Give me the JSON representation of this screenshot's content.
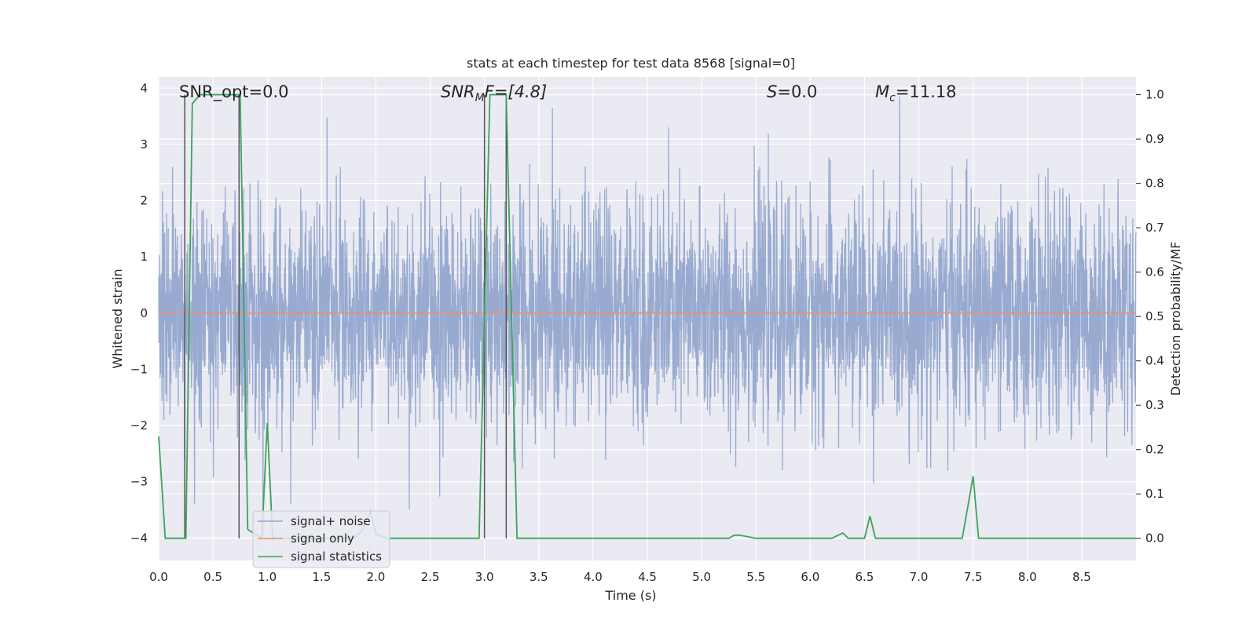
{
  "chart_data": {
    "type": "line",
    "title": "stats at each timestep for test data 8568 [signal=0]",
    "xlabel": "Time (s)",
    "ylabel": "Whitened strain",
    "y2label": "Detection probability/MF",
    "xlim": [
      0,
      9
    ],
    "ylim": [
      -4.4,
      4.2
    ],
    "y2lim": [
      -0.05,
      1.04
    ],
    "xticks": [
      "0.0",
      "0.5",
      "1.0",
      "1.5",
      "2.0",
      "2.5",
      "3.0",
      "3.5",
      "4.0",
      "4.5",
      "5.0",
      "5.5",
      "6.0",
      "6.5",
      "7.0",
      "7.5",
      "8.0",
      "8.5"
    ],
    "yticks": [
      "−4",
      "−3",
      "−2",
      "−1",
      "0",
      "1",
      "2",
      "3",
      "4"
    ],
    "y2ticks": [
      "0.0",
      "0.1",
      "0.2",
      "0.3",
      "0.4",
      "0.5",
      "0.6",
      "0.7",
      "0.8",
      "0.9",
      "1.0"
    ],
    "grid": true,
    "legend_position": "lower-left",
    "annotations": {
      "snr_opt": "SNR_opt=0.0",
      "snr_mf_main": "SNR",
      "snr_mf_sub": "M",
      "snr_mf_rest": "F=[4.8]",
      "s_main": "S",
      "s_rest": "=0.0",
      "mc_main": "M",
      "mc_sub": "c",
      "mc_rest": "=11.18"
    },
    "series": [
      {
        "name": "signal+ noise",
        "color": "#8fa3cc",
        "axis": "left",
        "description_sampling": "whitened strain noise, approx. Gaussian sd 1, 4096 Hz",
        "noise_sd": 1.0
      },
      {
        "name": "signal only",
        "color": "#e8926b",
        "axis": "left",
        "x": [
          0,
          9
        ],
        "y": [
          0,
          0
        ]
      },
      {
        "name": "signal statistics",
        "color": "#3da35a",
        "axis": "right",
        "x": [
          0.0,
          0.06,
          0.25,
          0.31,
          0.38,
          0.5,
          0.75,
          0.82,
          0.95,
          1.0,
          1.05,
          1.1,
          1.15,
          1.5,
          1.8,
          1.88,
          1.95,
          2.0,
          2.1,
          2.5,
          2.9,
          2.95,
          3.05,
          3.2,
          3.3,
          3.5,
          3.7,
          3.8,
          4.0,
          4.5,
          5.0,
          5.25,
          5.3,
          5.35,
          5.5,
          6.0,
          6.2,
          6.3,
          6.35,
          6.5,
          6.55,
          6.6,
          6.7,
          7.0,
          7.4,
          7.5,
          7.55,
          8.0,
          9.0
        ],
        "y": [
          0.23,
          0.0,
          0.0,
          0.98,
          1.0,
          1.0,
          1.0,
          0.02,
          0.0,
          0.26,
          0.0,
          0.0,
          0.0,
          0.0,
          0.0,
          0.02,
          0.06,
          0.01,
          0.0,
          0.0,
          0.0,
          0.0,
          1.0,
          1.0,
          0.0,
          0.0,
          0.0,
          0.0,
          0.0,
          0.0,
          0.0,
          0.0,
          0.007,
          0.007,
          0.0,
          0.0,
          0.0,
          0.012,
          0.0,
          0.0,
          0.05,
          0.0,
          0.0,
          0.0,
          0.0,
          0.14,
          0.0,
          0.0,
          0.0
        ]
      }
    ],
    "vertical_markers": [
      0.24,
      0.74,
      3.0,
      3.2
    ]
  },
  "colors": {
    "plot_bg": "#eaeaf2",
    "grid": "#ffffff",
    "marker_line": "#555555"
  }
}
